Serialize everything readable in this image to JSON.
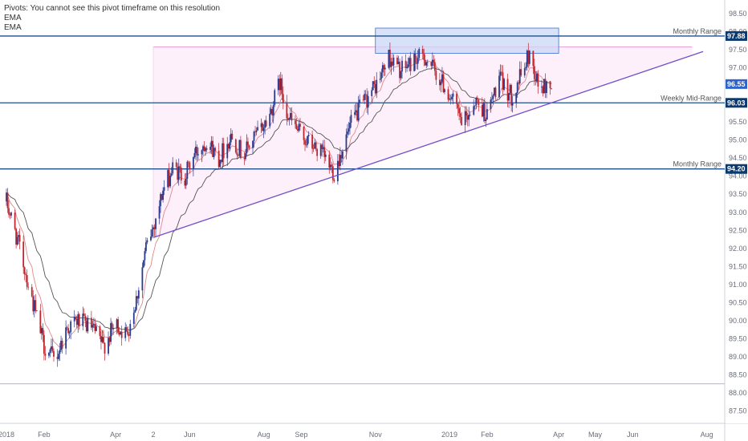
{
  "legend": {
    "pivots_note": "Pivots: You cannot see this pivot timeframe on this resolution",
    "ema1": "EMA",
    "ema2": "EMA"
  },
  "colors": {
    "up": "#2a3a8c",
    "down": "#c0262e",
    "level": "#1e4f8a",
    "trend": "#6f4fc9",
    "zone_fill": "#c9d7f5",
    "zone_stroke": "#3f6fd4",
    "triangle_fill": "#fdf0fa",
    "top_line": "#e7a2d8",
    "ema_fast": "#e08a8a",
    "ema_slow": "#555555",
    "price_badge": "#2f63c9",
    "level_badge": "#0d3a6e"
  },
  "chart_data": {
    "type": "candlestick",
    "ylim": [
      87.25,
      98.75
    ],
    "y_ticks": [
      98.5,
      98.0,
      97.5,
      97.0,
      96.5,
      96.0,
      95.5,
      95.0,
      94.5,
      94.0,
      93.5,
      93.0,
      92.5,
      92.0,
      91.5,
      91.0,
      90.5,
      90.0,
      89.5,
      89.0,
      88.5,
      88.0,
      87.5
    ],
    "x_ticks": [
      "2018",
      "Feb",
      "Apr",
      "2",
      "Jun",
      "Aug",
      "Sep",
      "Nov",
      "2019",
      "Feb",
      "Apr",
      "May",
      "Jun",
      "Aug"
    ],
    "x_tick_dates": [
      "2018-01-01",
      "2018-02-01",
      "2018-04-01",
      "2018-05-02",
      "2018-06-01",
      "2018-08-01",
      "2018-09-01",
      "2018-11-01",
      "2019-01-01",
      "2019-02-01",
      "2019-04-01",
      "2019-05-01",
      "2019-06-01",
      "2019-08-01"
    ],
    "levels": [
      {
        "label": "Monthly Range",
        "value": 97.88
      },
      {
        "label": "Weekly Mid-Range",
        "value": 96.03
      },
      {
        "label": "Monthly Range",
        "value": 94.2
      }
    ],
    "current_price": 96.55,
    "grey_level": 88.25,
    "resistance_zone": {
      "date_start": "2018-11-01",
      "date_end": "2019-04-01",
      "low": 97.4,
      "high": 98.1
    },
    "top_line": {
      "date_start": "2018-05-02",
      "date_end": "2019-07-20",
      "value": 97.58
    },
    "trendline": {
      "start": [
        "2018-05-02",
        92.3
      ],
      "end": [
        "2019-07-29",
        97.45
      ]
    },
    "series": [
      {
        "name": "EMA",
        "type": "ema",
        "period": 10
      },
      {
        "name": "EMA",
        "type": "ema",
        "period": 30
      }
    ],
    "price_path": [
      [
        "2018-01-01",
        93.3
      ],
      [
        "2018-01-12",
        92.0
      ],
      [
        "2018-01-22",
        90.6
      ],
      [
        "2018-02-01",
        89.3
      ],
      [
        "2018-02-10",
        88.9
      ],
      [
        "2018-02-20",
        89.8
      ],
      [
        "2018-03-01",
        90.0
      ],
      [
        "2018-03-12",
        89.8
      ],
      [
        "2018-03-22",
        89.3
      ],
      [
        "2018-04-01",
        89.9
      ],
      [
        "2018-04-10",
        89.6
      ],
      [
        "2018-04-18",
        90.6
      ],
      [
        "2018-04-26",
        92.0
      ],
      [
        "2018-05-02",
        92.6
      ],
      [
        "2018-05-10",
        93.6
      ],
      [
        "2018-05-18",
        94.2
      ],
      [
        "2018-05-28",
        94.0
      ],
      [
        "2018-06-05",
        94.6
      ],
      [
        "2018-06-15",
        95.0
      ],
      [
        "2018-06-25",
        94.5
      ],
      [
        "2018-07-05",
        95.1
      ],
      [
        "2018-07-15",
        94.6
      ],
      [
        "2018-07-25",
        95.1
      ],
      [
        "2018-08-05",
        95.6
      ],
      [
        "2018-08-14",
        96.6
      ],
      [
        "2018-08-22",
        95.6
      ],
      [
        "2018-08-30",
        95.2
      ],
      [
        "2018-09-08",
        94.9
      ],
      [
        "2018-09-18",
        94.6
      ],
      [
        "2018-09-28",
        94.1
      ],
      [
        "2018-10-06",
        94.9
      ],
      [
        "2018-10-14",
        95.6
      ],
      [
        "2018-10-24",
        96.1
      ],
      [
        "2018-11-03",
        96.6
      ],
      [
        "2018-11-12",
        97.3
      ],
      [
        "2018-11-22",
        96.9
      ],
      [
        "2018-12-02",
        97.2
      ],
      [
        "2018-12-12",
        97.3
      ],
      [
        "2018-12-22",
        96.8
      ],
      [
        "2019-01-02",
        96.2
      ],
      [
        "2019-01-12",
        95.4
      ],
      [
        "2019-01-22",
        96.1
      ],
      [
        "2019-02-01",
        95.7
      ],
      [
        "2019-02-11",
        96.7
      ],
      [
        "2019-02-21",
        96.2
      ],
      [
        "2019-03-01",
        96.8
      ],
      [
        "2019-03-08",
        97.4
      ],
      [
        "2019-03-16",
        96.4
      ],
      [
        "2019-03-26",
        96.55
      ]
    ]
  }
}
